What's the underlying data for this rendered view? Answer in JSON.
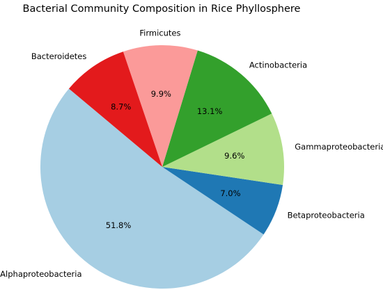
{
  "chart_data": {
    "type": "pie",
    "title": "Bacterial Community Composition in Rice Phyllosphere",
    "start_angle_deg": 140,
    "direction": "counterclockwise",
    "slices": [
      {
        "label": "Alphaproteobacteria",
        "value": 51.8,
        "pct_label": "51.8%",
        "color": "#a6cee3"
      },
      {
        "label": "Betaproteobacteria",
        "value": 7.0,
        "pct_label": "7.0%",
        "color": "#1f78b4"
      },
      {
        "label": "Gammaproteobacteria",
        "value": 9.6,
        "pct_label": "9.6%",
        "color": "#b2df8a"
      },
      {
        "label": "Actinobacteria",
        "value": 13.1,
        "pct_label": "13.1%",
        "color": "#33a02c"
      },
      {
        "label": "Firmicutes",
        "value": 9.9,
        "pct_label": "9.9%",
        "color": "#fb9a99"
      },
      {
        "label": "Bacteroidetes",
        "value": 8.7,
        "pct_label": "8.7%",
        "color": "#e31a1c"
      }
    ]
  }
}
